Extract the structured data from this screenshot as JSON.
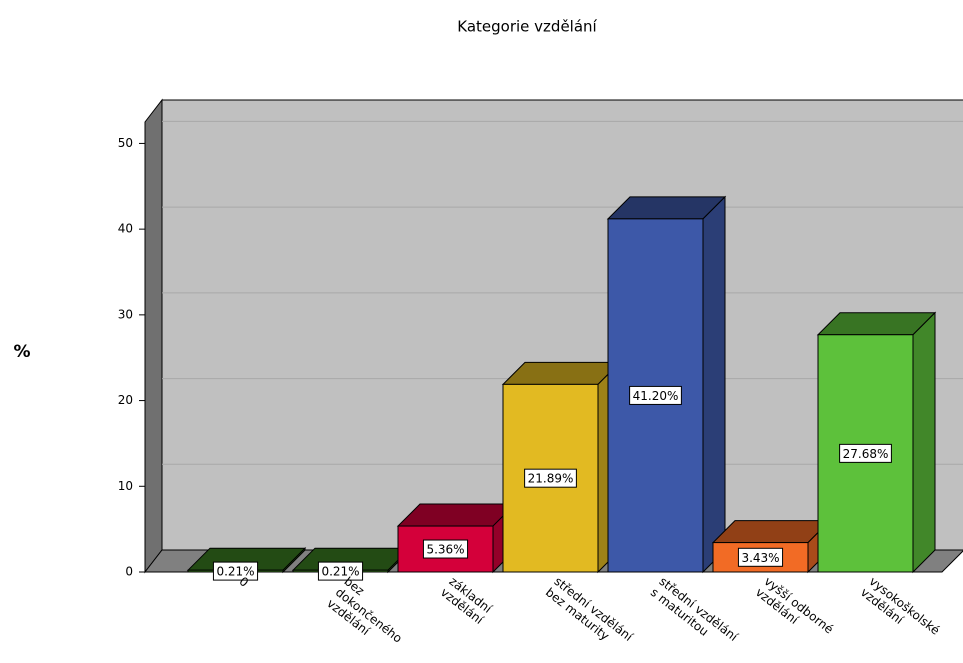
{
  "chart_data": {
    "type": "bar",
    "title": "Kategorie vzdělání",
    "y_label": "%",
    "categories": [
      [
        "0"
      ],
      [
        "bez",
        "dokončeného",
        "vzdělání"
      ],
      [
        "základní",
        "vzdělání"
      ],
      [
        "střední vzdělání",
        "bez maturity"
      ],
      [
        "střední vzdělání",
        "s maturitou"
      ],
      [
        "vyšší odborné",
        "vzdělání"
      ],
      [
        "vysokoškolské",
        "vzdělání"
      ]
    ],
    "values": [
      0.21,
      0.21,
      5.36,
      21.89,
      41.2,
      3.43,
      27.68
    ],
    "value_labels": [
      "0.21%",
      "0.21%",
      "5.36%",
      "21.89%",
      "41.20%",
      "3.43%",
      "27.68%"
    ],
    "colors": [
      "#3b7d22",
      "#3b7d22",
      "#d4003a",
      "#e2ba22",
      "#3d58a8",
      "#f26b25",
      "#5dc13b"
    ],
    "ylim": [
      0,
      52.5
    ],
    "yticks": [
      0,
      10,
      20,
      30,
      40,
      50
    ],
    "grid": true
  }
}
